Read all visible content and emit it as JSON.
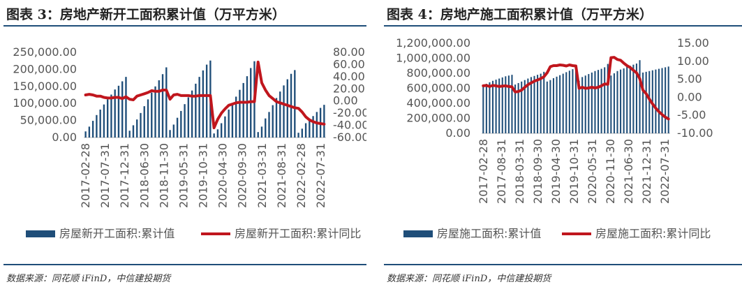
{
  "charts": [
    {
      "title": "图表 3：房地产新开工面积累计值（万平方米）",
      "source": "数据来源：同花顺 iFinD，中信建投期货",
      "chart_data": {
        "type": "bar+line",
        "left_axis": {
          "ticks": [
            "250,000.00",
            "200,000.00",
            "150,000.00",
            "100,000.00",
            "50,000.00",
            "0.00"
          ],
          "min": 0,
          "max": 250000
        },
        "right_axis": {
          "ticks": [
            "80.00",
            "60.00",
            "40.00",
            "20.00",
            "0.00",
            "-20.00",
            "-40.00",
            "-60.00"
          ],
          "min": -60,
          "max": 80
        },
        "x_tick_labels": [
          "2017-02-28",
          "2017-07-31",
          "2017-12-31",
          "2018-06-30",
          "2018-11-30",
          "2019-05-31",
          "2019-10-31",
          "2020-04-30",
          "2020-09-30",
          "2021-03-31",
          "2021-08-31",
          "2022-02-28",
          "2022-07-31"
        ],
        "series": [
          {
            "name": "房屋新开工面积:累计值",
            "kind": "bar",
            "color": "#1f4e79",
            "values": [
              18000,
              32000,
              49000,
              66000,
              82000,
              97000,
              112000,
              126000,
              141000,
              152000,
              165000,
              178000,
              20000,
              36000,
              53000,
              72000,
              92000,
              112000,
              132000,
              150000,
              168000,
              186000,
              206000,
              22000,
              38000,
              58000,
              78000,
              98000,
              118000,
              138000,
              158000,
              178000,
              197000,
              214000,
              226000,
              12000,
              24000,
              42000,
              62000,
              82000,
              101000,
              120000,
              140000,
              160000,
              180000,
              204000,
              224000,
              16000,
              32000,
              56000,
              75000,
              95000,
              116000,
              135000,
              153000,
              171000,
              187000,
              198000,
              14000,
              26000,
              42000,
              53000,
              63000,
              75000,
              87000,
              96000
            ]
          },
          {
            "name": "房屋新开工面积:累计同比",
            "kind": "line",
            "color": "#c0161d",
            "values": [
              10,
              11,
              10,
              8,
              8,
              6,
              5,
              5,
              6,
              6,
              4,
              7,
              3,
              2,
              8,
              10,
              12,
              14,
              17,
              16,
              16,
              18,
              18,
              3,
              10,
              11,
              9,
              9,
              9,
              8,
              8,
              9,
              9,
              9,
              9,
              -44,
              -30,
              -20,
              -13,
              -7,
              -5,
              -3,
              -2,
              -2,
              -2,
              -1,
              -1,
              64,
              30,
              18,
              9,
              4,
              -1,
              -3,
              -5,
              -7,
              -9,
              -11,
              -12,
              -18,
              -26,
              -31,
              -34,
              -36,
              -37,
              -38
            ]
          }
        ]
      }
    },
    {
      "title": "图表 4：房地产施工面积累计值（万平方米）",
      "source": "数据来源：同花顺 iFinD，中信建投期货",
      "chart_data": {
        "type": "bar+line",
        "left_axis": {
          "ticks": [
            "1,200,000.00",
            "1,000,000.00",
            "800,000.00",
            "600,000.00",
            "400,000.00",
            "200,000.00",
            "0.00"
          ],
          "min": 0,
          "max": 1200000
        },
        "right_axis": {
          "ticks": [
            "15.00",
            "10.00",
            "5.00",
            "0.00",
            "-5.00",
            "-10.00"
          ],
          "min": -10,
          "max": 15
        },
        "x_tick_labels": [
          "2017-02-28",
          "2017-08-31",
          "2018-03-31",
          "2018-09-30",
          "2019-04-30",
          "2019-10-31",
          "2020-05-31",
          "2020-11-30",
          "2021-06-30",
          "2021-12-31",
          "2022-07-31"
        ],
        "series": [
          {
            "name": "房屋施工面积:累计值",
            "kind": "bar",
            "color": "#1f4e79",
            "values": [
              640000,
              660000,
              680000,
              700000,
              715000,
              730000,
              745000,
              760000,
              770000,
              780000,
              650000,
              670000,
              690000,
              710000,
              730000,
              750000,
              765000,
              780000,
              795000,
              820000,
              690000,
              710000,
              735000,
              755000,
              775000,
              795000,
              815000,
              835000,
              855000,
              890000,
              700000,
              750000,
              770000,
              790000,
              810000,
              830000,
              845000,
              860000,
              880000,
              925000,
              770000,
              800000,
              830000,
              850000,
              865000,
              885000,
              900000,
              915000,
              930000,
              975000,
              810000,
              820000,
              830000,
              840000,
              850000,
              860000,
              870000,
              880000,
              890000
            ]
          },
          {
            "name": "房屋施工面积:累计同比",
            "kind": "line",
            "color": "#c0161d",
            "values": [
              3.2,
              3.3,
              3.0,
              3.3,
              3.2,
              3.0,
              3.1,
              3.2,
              3.0,
              2.9,
              1.5,
              1.6,
              2.0,
              2.8,
              3.5,
              4.0,
              4.5,
              4.8,
              5.2,
              5.7,
              6.8,
              8.5,
              8.8,
              8.8,
              9.0,
              8.9,
              8.7,
              9.0,
              8.8,
              8.7,
              2.5,
              2.8,
              2.5,
              2.6,
              2.8,
              2.6,
              2.8,
              3.2,
              3.7,
              3.6,
              11.0,
              11.1,
              10.5,
              10.3,
              9.5,
              8.8,
              8.3,
              7.5,
              6.8,
              5.2,
              2.0,
              1.0,
              -0.5,
              -1.8,
              -3.0,
              -4.0,
              -4.8,
              -5.5,
              -6.0
            ]
          }
        ]
      }
    }
  ]
}
